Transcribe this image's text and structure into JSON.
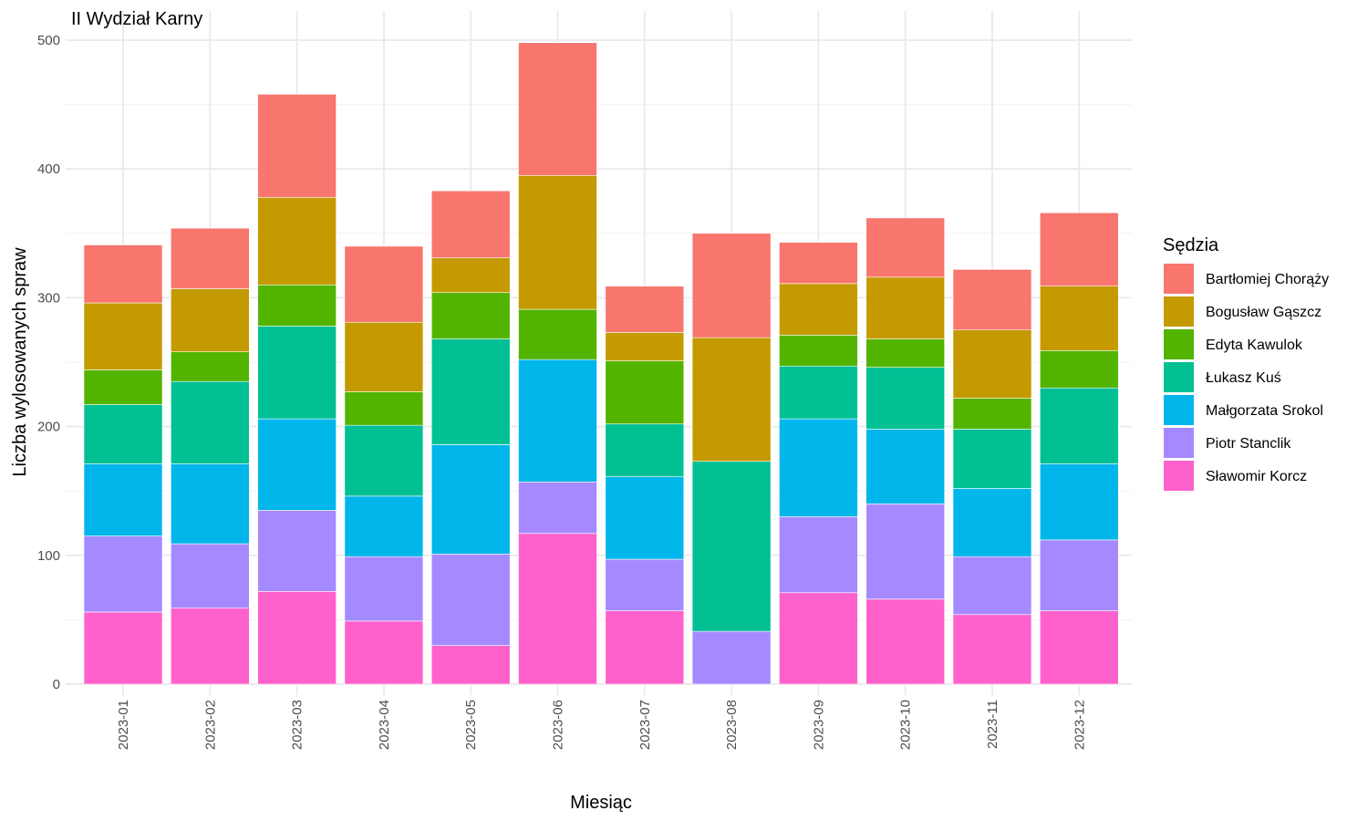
{
  "chart_data": {
    "type": "bar",
    "stacked": true,
    "title": "II Wydział Karny",
    "xlabel": "Miesiąc",
    "ylabel": "Liczba wylosowanych spraw",
    "ylim": [
      0,
      500
    ],
    "yticks": [
      0,
      100,
      200,
      300,
      400,
      500
    ],
    "grid": true,
    "legend_title": "Sędzia",
    "legend_position": "right",
    "categories": [
      "2023-01",
      "2023-02",
      "2023-03",
      "2023-04",
      "2023-05",
      "2023-06",
      "2023-07",
      "2023-08",
      "2023-09",
      "2023-10",
      "2023-11",
      "2023-12"
    ],
    "series": [
      {
        "name": "Sławomir Korcz",
        "color": "#FF61CC",
        "values": [
          56,
          59,
          72,
          49,
          30,
          117,
          57,
          0,
          71,
          66,
          54,
          57
        ]
      },
      {
        "name": "Piotr Stanclik",
        "color": "#A58AFF",
        "values": [
          59,
          50,
          63,
          50,
          71,
          40,
          40,
          41,
          59,
          74,
          45,
          55
        ]
      },
      {
        "name": "Małgorzata Srokol",
        "color": "#00B6EB",
        "values": [
          56,
          62,
          71,
          47,
          85,
          95,
          64,
          0,
          76,
          58,
          53,
          59
        ]
      },
      {
        "name": "Łukasz Kuś",
        "color": "#00C094",
        "values": [
          46,
          64,
          72,
          55,
          82,
          0,
          41,
          132,
          41,
          48,
          46,
          59
        ]
      },
      {
        "name": "Edyta Kawulok",
        "color": "#53B400",
        "values": [
          27,
          23,
          32,
          26,
          36,
          39,
          49,
          0,
          24,
          22,
          24,
          29
        ]
      },
      {
        "name": "Bogusław Gąszcz",
        "color": "#C49A00",
        "values": [
          52,
          49,
          68,
          54,
          27,
          104,
          22,
          96,
          40,
          48,
          53,
          50
        ]
      },
      {
        "name": "Bartłomiej Chorąży",
        "color": "#F8766D",
        "values": [
          45,
          47,
          80,
          59,
          52,
          103,
          36,
          81,
          32,
          46,
          47,
          57
        ]
      }
    ],
    "legend_order": [
      "Bartłomiej Chorąży",
      "Bogusław Gąszcz",
      "Edyta Kawulok",
      "Łukasz Kuś",
      "Małgorzata Srokol",
      "Piotr Stanclik",
      "Sławomir Korcz"
    ]
  }
}
